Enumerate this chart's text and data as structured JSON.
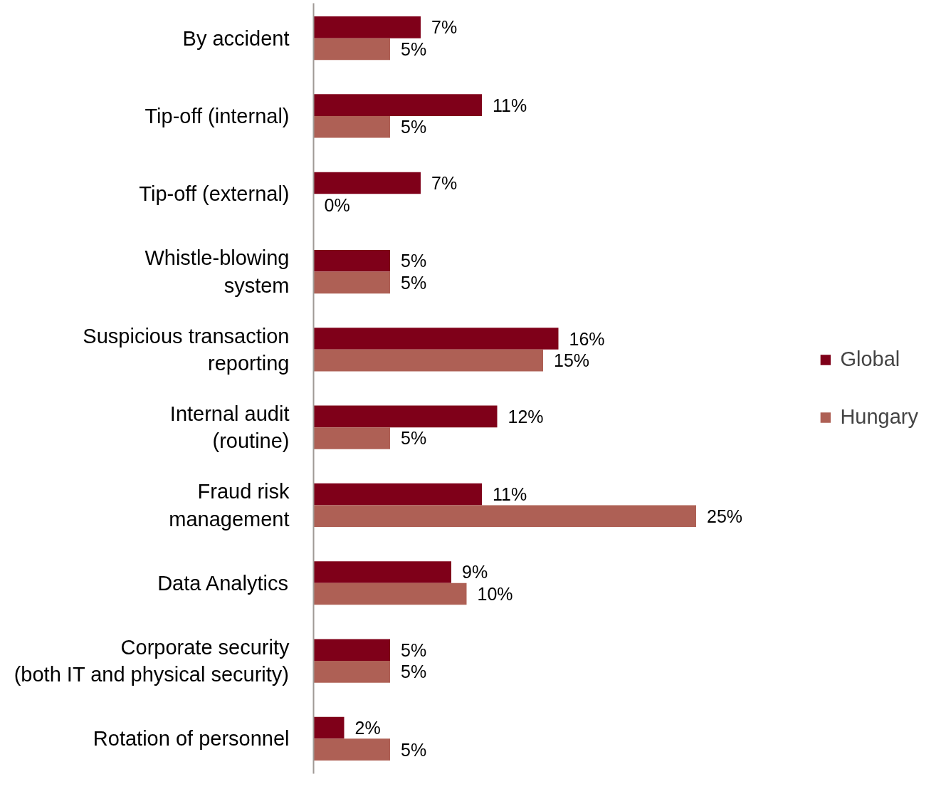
{
  "chart_data": {
    "type": "bar",
    "orientation": "horizontal",
    "categories": [
      "By accident",
      "Tip-off (internal)",
      "Tip-off (external)",
      "Whistle-blowing\nsystem",
      "Suspicious transaction\nreporting",
      "Internal audit\n(routine)",
      "Fraud risk\nmanagement",
      "Data Analytics",
      "Corporate security\n(both IT and physical security)",
      "Rotation of personnel"
    ],
    "series": [
      {
        "name": "Global",
        "color": "#7f0019",
        "values": [
          7,
          11,
          7,
          5,
          16,
          12,
          11,
          9,
          5,
          2
        ],
        "value_labels": [
          "7%",
          "11%",
          "7%",
          "5%",
          "16%",
          "12%",
          "11%",
          "9%",
          "5%",
          "2%"
        ]
      },
      {
        "name": "Hungary",
        "color": "#ae6055",
        "values": [
          5,
          5,
          0,
          5,
          15,
          5,
          25,
          10,
          5,
          5
        ],
        "value_labels": [
          "5%",
          "5%",
          "0%",
          "5%",
          "15%",
          "5%",
          "25%",
          "10%",
          "5%",
          "5%"
        ]
      }
    ],
    "data_labels": true,
    "legend": "right",
    "grid": false
  }
}
